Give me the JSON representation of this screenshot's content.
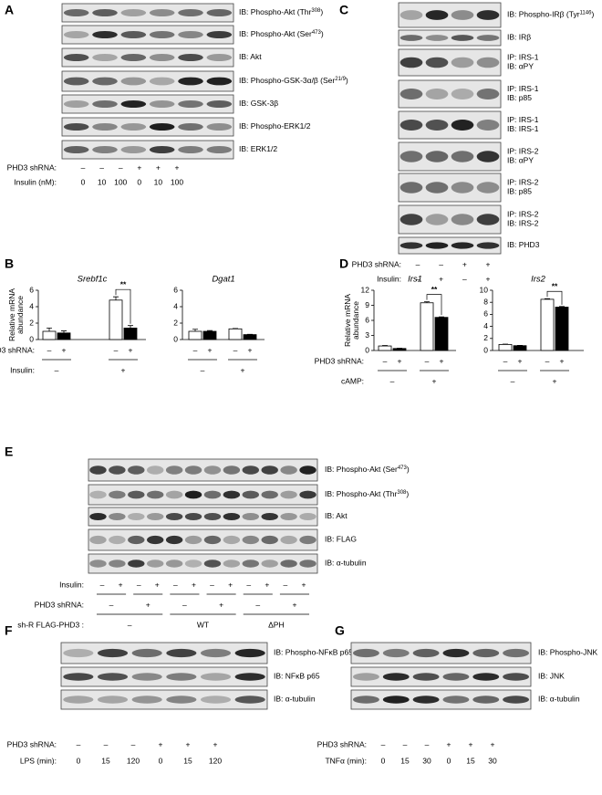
{
  "blot_panels": [
    {
      "letter": "A",
      "blots": [
        {
          "text": "IB: Phospho-Akt (Thr",
          "sup": "308",
          "after": ")"
        },
        {
          "text": "IB: Phospho-Akt (Ser",
          "sup": "473",
          "after": ")"
        },
        {
          "text": "IB: Akt"
        },
        {
          "text": "IB: Phospho-GSK-3α/β (Ser",
          "sup": "21/9",
          "after": ")"
        },
        {
          "text": "IB: GSK-3β"
        },
        {
          "text": "IB: Phospho-ERK1/2"
        },
        {
          "text": "IB: ERK1/2"
        }
      ],
      "rows": [
        {
          "label": "PHD3 shRNA:",
          "lanes": [
            "–",
            "–",
            "–",
            "+",
            "+",
            "+"
          ]
        },
        {
          "label": "Insulin (nM):",
          "lanes": [
            "0",
            "10",
            "100",
            "0",
            "10",
            "100"
          ]
        }
      ]
    },
    {
      "letter": "C",
      "blots": [
        {
          "text": "IB: Phospho-IRβ (Tyr",
          "sup": "1146",
          "after": ")"
        },
        {
          "text": "IB: IRβ"
        },
        {
          "lines": [
            "IP: IRS-1",
            "IB: αPY"
          ]
        },
        {
          "lines": [
            "IP: IRS-1",
            "IB: p85"
          ]
        },
        {
          "lines": [
            "IP: IRS-1",
            "IB: IRS-1"
          ]
        },
        {
          "lines": [
            "IP: IRS-2",
            "IB: αPY"
          ]
        },
        {
          "lines": [
            "IP: IRS-2",
            "IB: p85"
          ]
        },
        {
          "lines": [
            "IP: IRS-2",
            "IB: IRS-2"
          ]
        },
        {
          "text": "IB: PHD3"
        }
      ],
      "rows": [
        {
          "label": "PHD3 shRNA:",
          "lanes": [
            "–",
            "–",
            "+",
            "+"
          ]
        },
        {
          "label": "Insulin:",
          "lanes": [
            "–",
            "+",
            "–",
            "+"
          ]
        }
      ]
    },
    {
      "letter": "E",
      "blots": [
        {
          "text": "IB: Phospho-Akt (Ser",
          "sup": "473",
          "after": ")"
        },
        {
          "text": "IB: Phospho-Akt (Thr",
          "sup": "308",
          "after": ")"
        },
        {
          "text": "IB: Akt"
        },
        {
          "text": "IB: FLAG"
        },
        {
          "text": "IB: α-tubulin"
        }
      ],
      "rows": [
        {
          "label": "Insulin:",
          "lanes": [
            "–",
            "+",
            "–",
            "+",
            "–",
            "+",
            "–",
            "+",
            "–",
            "+",
            "–",
            "+"
          ]
        },
        {
          "label": "PHD3 shRNA:",
          "lanes": [
            "–",
            "+",
            "–",
            "+",
            "–",
            "+"
          ]
        },
        {
          "label": "sh-R FLAG-PHD3 :",
          "lanes": [
            "–",
            "WT",
            "ΔPH"
          ]
        }
      ]
    },
    {
      "letter": "F",
      "blots": [
        {
          "text": "IB: Phospho-NFκB p65"
        },
        {
          "text": "IB: NFκB p65"
        },
        {
          "text": "IB: α-tubulin"
        }
      ],
      "rows": [
        {
          "label": "PHD3 shRNA:",
          "lanes": [
            "–",
            "–",
            "–",
            "+",
            "+",
            "+"
          ]
        },
        {
          "label": "LPS (min):",
          "lanes": [
            "0",
            "15",
            "120",
            "0",
            "15",
            "120"
          ]
        }
      ]
    },
    {
      "letter": "G",
      "blots": [
        {
          "text": "IB: Phospho-JNK"
        },
        {
          "text": "IB: JNK"
        },
        {
          "text": "IB: α-tubulin"
        }
      ],
      "rows": [
        {
          "label": "PHD3 shRNA:",
          "lanes": [
            "–",
            "–",
            "–",
            "+",
            "+",
            "+"
          ]
        },
        {
          "label": "TNFα (min):",
          "lanes": [
            "0",
            "15",
            "30",
            "0",
            "15",
            "30"
          ]
        }
      ]
    }
  ],
  "chart_data": [
    {
      "type": "bar",
      "panel": "B",
      "title": "Srebf1c",
      "ylabel": [
        "Relative mRNA",
        "abundance"
      ],
      "x_rows": [
        "PHD3 shRNA:",
        "Insulin:"
      ],
      "categories": [
        "–",
        "+"
      ],
      "series": [
        {
          "name": "–",
          "color": "#ffffff",
          "values": [
            1.0,
            4.8
          ],
          "errors": [
            0.4,
            0.4
          ]
        },
        {
          "name": "+",
          "color": "#000000",
          "values": [
            0.8,
            1.4
          ],
          "errors": [
            0.25,
            0.3
          ]
        }
      ],
      "ylim": [
        0,
        6
      ],
      "yticks": [
        0,
        2,
        4,
        6
      ],
      "annotation": "**"
    },
    {
      "type": "bar",
      "title": "Dgat1",
      "categories": [
        "–",
        "+"
      ],
      "series": [
        {
          "name": "–",
          "color": "#ffffff",
          "values": [
            1.0,
            1.3
          ],
          "errors": [
            0.25,
            0.05
          ]
        },
        {
          "name": "+",
          "color": "#000000",
          "values": [
            1.0,
            0.6
          ],
          "errors": [
            0.1,
            0.03
          ]
        }
      ],
      "ylim": [
        0,
        6
      ],
      "yticks": [
        0,
        2,
        4,
        6
      ]
    },
    {
      "type": "bar",
      "panel": "D",
      "title": "Irs1",
      "ylabel": [
        "Relative mRNA",
        "abundance"
      ],
      "x_rows": [
        "PHD3 shRNA:",
        "cAMP:"
      ],
      "categories": [
        "–",
        "+"
      ],
      "series": [
        {
          "name": "–",
          "color": "#ffffff",
          "values": [
            0.9,
            9.5
          ],
          "errors": [
            0.1,
            0.2
          ]
        },
        {
          "name": "+",
          "color": "#000000",
          "values": [
            0.4,
            6.6
          ],
          "errors": [
            0.05,
            0.1
          ]
        }
      ],
      "ylim": [
        0,
        12
      ],
      "yticks": [
        0,
        3,
        6,
        9,
        12
      ],
      "annotation": "**"
    },
    {
      "type": "bar",
      "title": "Irs2",
      "categories": [
        "–",
        "+"
      ],
      "series": [
        {
          "name": "–",
          "color": "#ffffff",
          "values": [
            1.0,
            8.5
          ],
          "errors": [
            0.05,
            0.1
          ]
        },
        {
          "name": "+",
          "color": "#000000",
          "values": [
            0.8,
            7.2
          ],
          "errors": [
            0.05,
            0.1
          ]
        }
      ],
      "ylim": [
        0,
        10
      ],
      "yticks": [
        0,
        2,
        4,
        6,
        8,
        10
      ],
      "annotation": "**"
    }
  ]
}
